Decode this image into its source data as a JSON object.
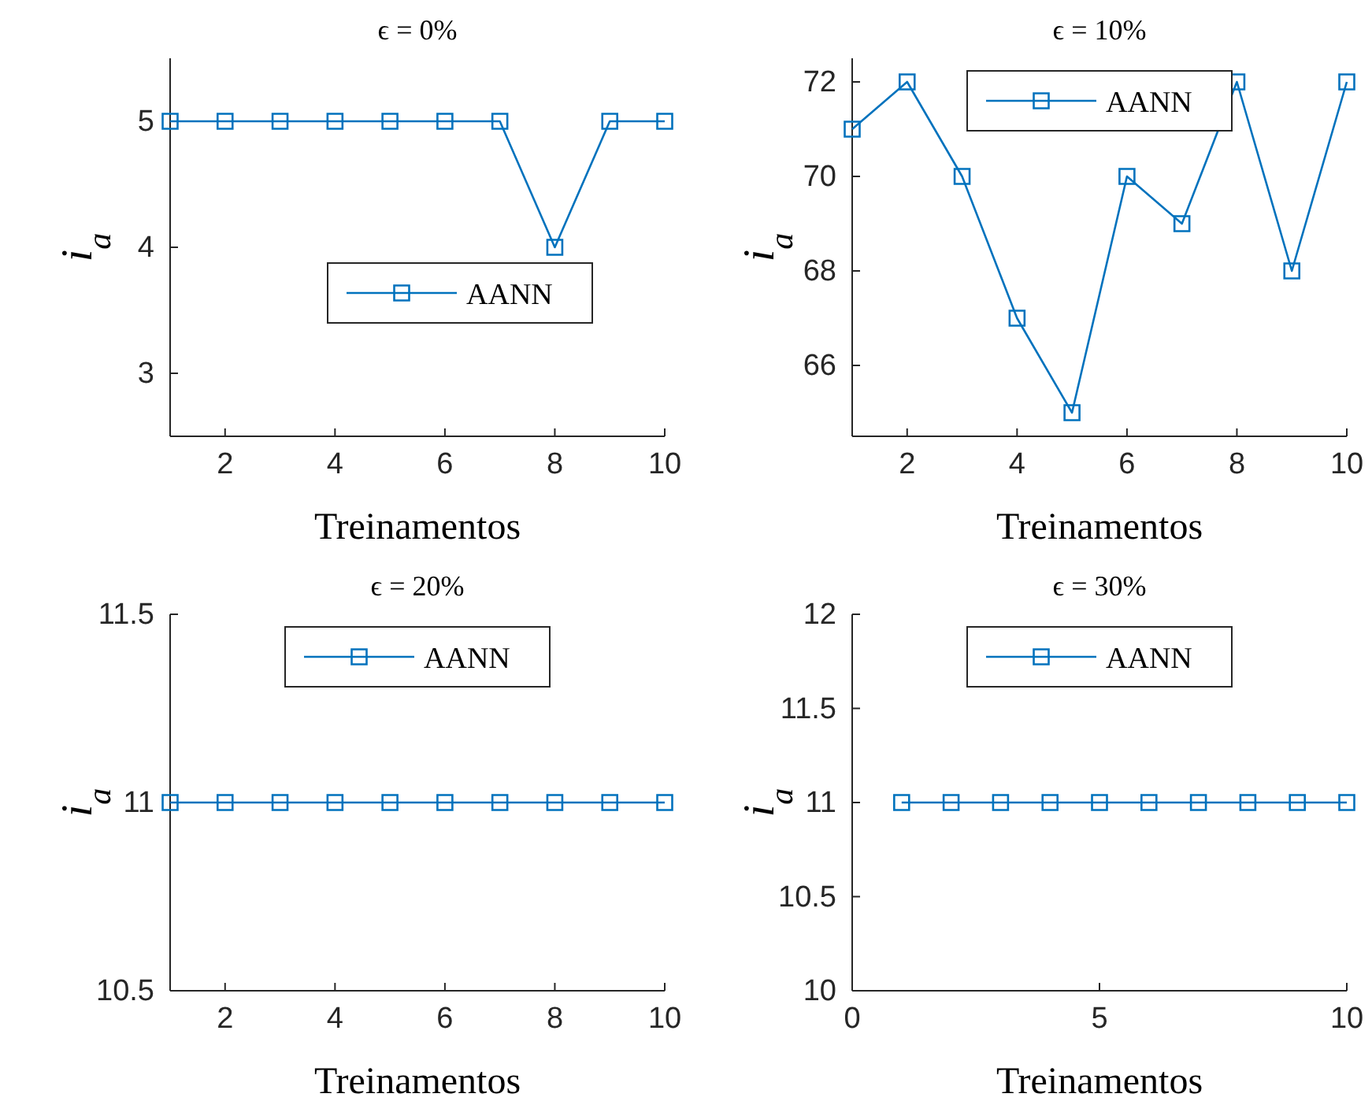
{
  "chart_data": [
    {
      "type": "line",
      "title": "ϵ = 0%",
      "xlabel": "Treinamentos",
      "ylabel": "i$_{a}$",
      "x": [
        1,
        2,
        3,
        4,
        5,
        6,
        7,
        8,
        9,
        10
      ],
      "xlim": [
        1,
        10
      ],
      "xticks": [
        2,
        4,
        6,
        8,
        10
      ],
      "ylim": [
        2.5,
        5.5
      ],
      "yticks": [
        3,
        4,
        5
      ],
      "marker": "square",
      "legend": "right",
      "grid": false,
      "series": [
        {
          "name": "AANN",
          "color": "#0072bd",
          "values": [
            5,
            5,
            5,
            5,
            5,
            5,
            5,
            4,
            5,
            5
          ]
        }
      ]
    },
    {
      "type": "line",
      "title": "ϵ = 10%",
      "xlabel": "Treinamentos",
      "ylabel": "i$_{a}$",
      "x": [
        1,
        2,
        3,
        4,
        5,
        6,
        7,
        8,
        9,
        10
      ],
      "xlim": [
        1,
        10
      ],
      "xticks": [
        2,
        4,
        6,
        8,
        10
      ],
      "ylim": [
        64.5,
        72.5
      ],
      "yticks": [
        66,
        68,
        70,
        72
      ],
      "marker": "square",
      "legend": "top",
      "grid": false,
      "series": [
        {
          "name": "AANN",
          "color": "#0072bd",
          "values": [
            71,
            72,
            70,
            67,
            65,
            70,
            69,
            72,
            68,
            72
          ]
        }
      ]
    },
    {
      "type": "line",
      "title": "ϵ = 20%",
      "xlabel": "Treinamentos",
      "ylabel": "i$_{a}$",
      "x": [
        1,
        2,
        3,
        4,
        5,
        6,
        7,
        8,
        9,
        10
      ],
      "xlim": [
        1,
        10
      ],
      "xticks": [
        2,
        4,
        6,
        8,
        10
      ],
      "ylim": [
        10.5,
        11.5
      ],
      "yticks": [
        10.5,
        11,
        11.5
      ],
      "marker": "square",
      "legend": "top",
      "grid": false,
      "series": [
        {
          "name": "AANN",
          "color": "#0072bd",
          "values": [
            11,
            11,
            11,
            11,
            11,
            11,
            11,
            11,
            11,
            11
          ]
        }
      ]
    },
    {
      "type": "line",
      "title": "ϵ = 30%",
      "xlabel": "Treinamentos",
      "ylabel": "i$_{a}$",
      "x": [
        1,
        2,
        3,
        4,
        5,
        6,
        7,
        8,
        9,
        10
      ],
      "xlim": [
        0,
        10
      ],
      "xticks": [
        0,
        5,
        10
      ],
      "ylim": [
        10,
        12
      ],
      "yticks": [
        10,
        10.5,
        11,
        11.5,
        12
      ],
      "marker": "square",
      "legend": "top",
      "grid": false,
      "series": [
        {
          "name": "AANN",
          "color": "#0072bd",
          "values": [
            11,
            11,
            11,
            11,
            11,
            11,
            11,
            11,
            11,
            11
          ]
        }
      ]
    }
  ]
}
